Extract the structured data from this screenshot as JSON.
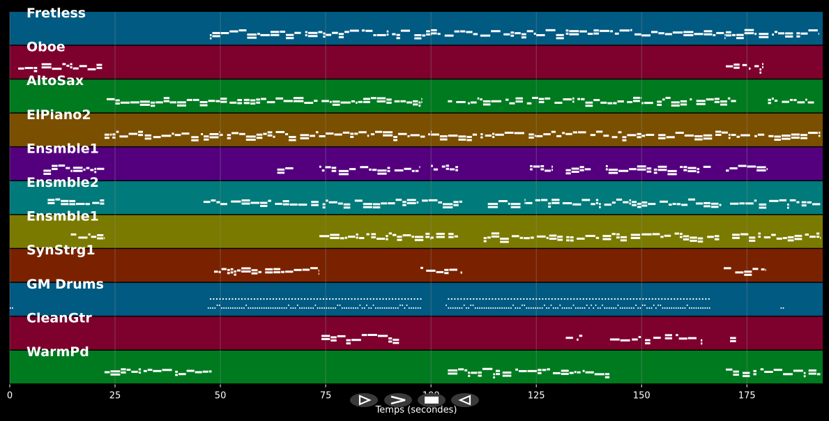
{
  "chart_data": {
    "type": "piano-roll",
    "xlabel": "Temps (secondes)",
    "xlim": [
      0,
      193
    ],
    "xticks": [
      0,
      25,
      50,
      75,
      100,
      125,
      150,
      175
    ],
    "xtick_labels": [
      "0",
      "25",
      "50",
      "75",
      "100",
      "125",
      "150",
      "175"
    ],
    "grid": true,
    "tracks": [
      {
        "name": "Fretless",
        "color": "#005a82",
        "segments": [
          [
            47.5,
            59.5
          ],
          [
            59.5,
            75
          ],
          [
            75,
            100
          ],
          [
            100,
            125
          ],
          [
            125,
            150
          ],
          [
            150,
            170
          ],
          [
            170,
            192
          ]
        ]
      },
      {
        "name": "Oboe",
        "color": "#7e002d",
        "segments": [
          [
            2,
            22
          ],
          [
            170,
            179
          ]
        ]
      },
      {
        "name": "AltoSax",
        "color": "#007a1f",
        "segments": [
          [
            23,
            38
          ],
          [
            38,
            50
          ],
          [
            50,
            65
          ],
          [
            65,
            98
          ],
          [
            104,
            124
          ],
          [
            124,
            150
          ],
          [
            150,
            172.5
          ],
          [
            180,
            191
          ]
        ]
      },
      {
        "name": "ElPiano2",
        "color": "#7a4f00",
        "segments": [
          [
            22.5,
            50
          ],
          [
            50,
            75
          ],
          [
            75,
            100
          ],
          [
            100,
            125
          ],
          [
            125,
            150
          ],
          [
            150,
            169
          ],
          [
            169,
            192.5
          ]
        ]
      },
      {
        "name": "Ensmble1",
        "color": "#54007e",
        "segments": [
          [
            8,
            22.5
          ],
          [
            63.5,
            67.5
          ],
          [
            73.5,
            97.5
          ],
          [
            100,
            106.5
          ],
          [
            123.5,
            129
          ],
          [
            132,
            138
          ],
          [
            141.5,
            166.5
          ],
          [
            170,
            180
          ]
        ]
      },
      {
        "name": "Ensmble2",
        "color": "#007a7a",
        "segments": [
          [
            9,
            22.5
          ],
          [
            46,
            50
          ],
          [
            50,
            75
          ],
          [
            75,
            107.5
          ],
          [
            113.5,
            122.5
          ],
          [
            122.5,
            150
          ],
          [
            150,
            169
          ],
          [
            171,
            192.5
          ]
        ]
      },
      {
        "name": "Ensmble1",
        "color": "#7a7a00",
        "segments": [
          [
            14.5,
            22.5
          ],
          [
            73.5,
            100
          ],
          [
            100,
            106.5
          ],
          [
            112.5,
            130
          ],
          [
            130,
            150
          ],
          [
            150,
            168.5
          ],
          [
            171.5,
            192.5
          ]
        ]
      },
      {
        "name": "SynStrg1",
        "color": "#7a2200",
        "segments": [
          [
            48.5,
            73.5
          ],
          [
            97.5,
            107.5
          ],
          [
            169.5,
            179.5
          ]
        ]
      },
      {
        "name": "GM Drums",
        "color": "#005a82",
        "segments": [
          [
            0,
            1
          ],
          [
            47,
            97.5
          ],
          [
            103.5,
            166.5
          ],
          [
            183,
            184
          ]
        ]
      },
      {
        "name": "CleanGtr",
        "color": "#7e002d",
        "segments": [
          [
            74,
            92.5
          ],
          [
            132,
            136
          ],
          [
            142.5,
            164.5
          ],
          [
            171,
            172.5
          ]
        ]
      },
      {
        "name": "WarmPd",
        "color": "#007a1f",
        "segments": [
          [
            22.5,
            48
          ],
          [
            104,
            143
          ],
          [
            170,
            192.5
          ]
        ]
      }
    ]
  },
  "playback_controls": [
    {
      "name": "play-button",
      "glyph": "play-outline-icon"
    },
    {
      "name": "forward-button",
      "glyph": "chevron-right-icon"
    },
    {
      "name": "stop-button",
      "glyph": "stop-icon"
    },
    {
      "name": "reverse-button",
      "glyph": "play-reverse-icon"
    }
  ],
  "colors": {
    "background": "#000000",
    "note": "#ffffff",
    "grid": "#8a8a8a"
  }
}
